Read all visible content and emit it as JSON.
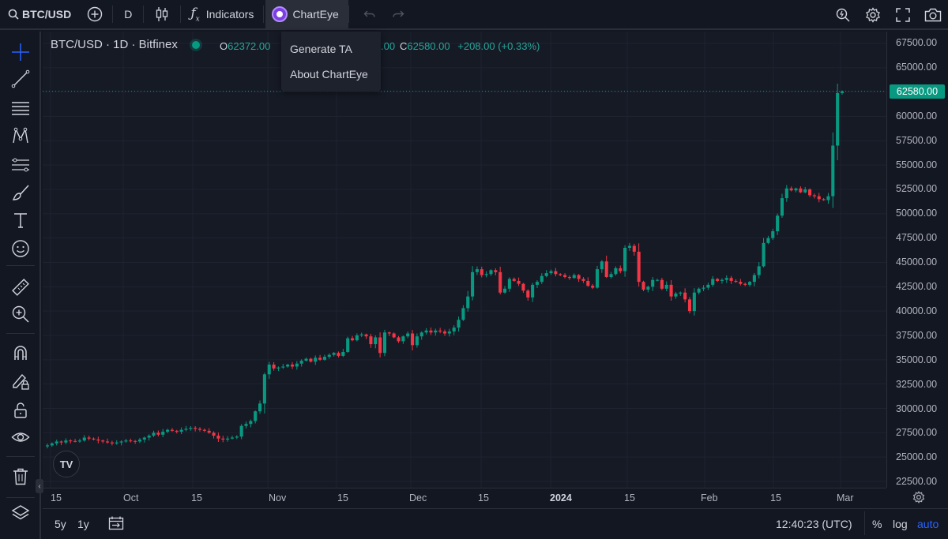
{
  "toolbar": {
    "symbol": "BTC/USD",
    "interval": "D",
    "indicators_label": "Indicators",
    "chart_eye_label": "ChartEye"
  },
  "dropdown": {
    "items": [
      "Generate TA",
      "About ChartEye"
    ]
  },
  "legend": {
    "title": "BTC/USD · 1D · Bitfinex",
    "open_key": "O",
    "open_value": "62372.00",
    "partial_value": ".00",
    "close_key": "C",
    "close_value": "62580.00",
    "change": "+208.00 (+0.33%)"
  },
  "price_axis": {
    "labels": [
      "67500.00",
      "65000.00",
      "62500.00",
      "60000.00",
      "57500.00",
      "55000.00",
      "52500.00",
      "50000.00",
      "47500.00",
      "45000.00",
      "42500.00",
      "40000.00",
      "37500.00",
      "35000.00",
      "32500.00",
      "30000.00",
      "27500.00",
      "25000.00",
      "22500.00"
    ],
    "last_price": "62580.00"
  },
  "time_axis": {
    "labels": [
      "15",
      "Oct",
      "15",
      "Nov",
      "15",
      "Dec",
      "15",
      "2024",
      "15",
      "Feb",
      "15",
      "Mar"
    ]
  },
  "bottom": {
    "range_5y": "5y",
    "range_1y": "1y",
    "clock": "12:40:23 (UTC)",
    "percent": "%",
    "log": "log",
    "auto": "auto"
  },
  "logo": "TV",
  "colors": {
    "up": "#089981",
    "down": "#f23645",
    "accent": "#2962ff",
    "chart_eye": "#7b3fe4"
  },
  "chart_data": {
    "type": "candlestick",
    "title": "BTC/USD · 1D · Bitfinex",
    "y_range": [
      22500,
      67500
    ],
    "closes": [
      26200,
      26400,
      26600,
      26500,
      26700,
      26650,
      26600,
      26700,
      27000,
      26900,
      26800,
      26700,
      26600,
      26500,
      26400,
      26500,
      26600,
      26700,
      26650,
      26600,
      26800,
      27000,
      27200,
      27500,
      27300,
      27600,
      27800,
      27700,
      27600,
      27800,
      27900,
      28000,
      27900,
      27800,
      27700,
      27500,
      27200,
      26900,
      26800,
      26900,
      27000,
      27100,
      28200,
      28400,
      28700,
      29700,
      30500,
      33500,
      34500,
      34100,
      34200,
      34300,
      34500,
      34300,
      34600,
      34900,
      35100,
      34800,
      35200,
      35000,
      35300,
      35500,
      35700,
      35400,
      35800,
      37200,
      37000,
      37500,
      37600,
      37400,
      36600,
      37300,
      35700,
      37800,
      37700,
      37300,
      36900,
      37400,
      37700,
      36500,
      37400,
      37800,
      38000,
      37800,
      38000,
      37900,
      37700,
      37900,
      38300,
      39100,
      40300,
      41500,
      44000,
      44300,
      43700,
      43800,
      44200,
      44000,
      41900,
      42300,
      43300,
      43100,
      42800,
      42100,
      41400,
      42700,
      43000,
      43600,
      43900,
      44100,
      43800,
      43700,
      43500,
      43400,
      43700,
      43300,
      43100,
      42600,
      42400,
      44300,
      45100,
      43500,
      43800,
      44400,
      44100,
      46500,
      46700,
      46100,
      43000,
      42200,
      42500,
      43200,
      43200,
      42300,
      42700,
      41500,
      41800,
      41900,
      41200,
      40000,
      41900,
      42300,
      42400,
      42700,
      43300,
      43100,
      43200,
      43400,
      43100,
      43000,
      42800,
      42700,
      43000,
      43700,
      44600,
      47000,
      47500,
      48200,
      49800,
      51600,
      52600,
      52400,
      52600,
      52200,
      52500,
      51900,
      51800,
      51500,
      51400,
      51800,
      57000,
      62400,
      62580
    ]
  }
}
